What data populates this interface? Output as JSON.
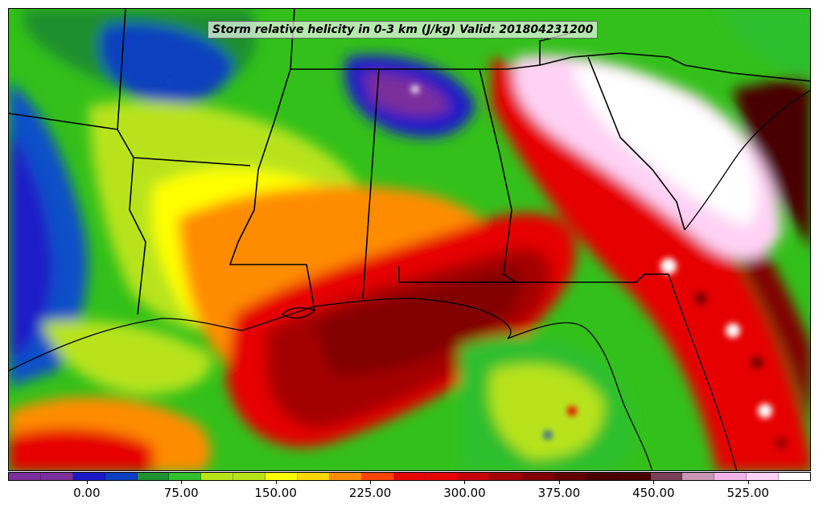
{
  "title": "Storm relative helicity in 0-3 km (J/kg) Valid: 201804231200",
  "colorbar": {
    "colors": [
      "#7b2f9b",
      "#1a1ac8",
      "#0b3fbf",
      "#1f8f2f",
      "#2fbf2f",
      "#b8e31a",
      "#ffff00",
      "#ffd700",
      "#ff8c00",
      "#ff4500",
      "#e60000",
      "#c80000",
      "#a50000",
      "#820000",
      "#640000",
      "#4a0000",
      "#7a4058",
      "#c896b4",
      "#f0b4e6",
      "#ffd2f5",
      "#ffffff"
    ],
    "tick_labels": [
      "0.00",
      "75.00",
      "150.00",
      "225.00",
      "300.00",
      "375.00",
      "450.00",
      "525.00"
    ],
    "tick_positions_in_segments": [
      2,
      5,
      8,
      11,
      14,
      17,
      20,
      23
    ]
  },
  "map": {
    "region": "Southeastern United States",
    "field": "Storm relative helicity 0-3 km",
    "units": "J/kg",
    "valid": "201804231200"
  }
}
